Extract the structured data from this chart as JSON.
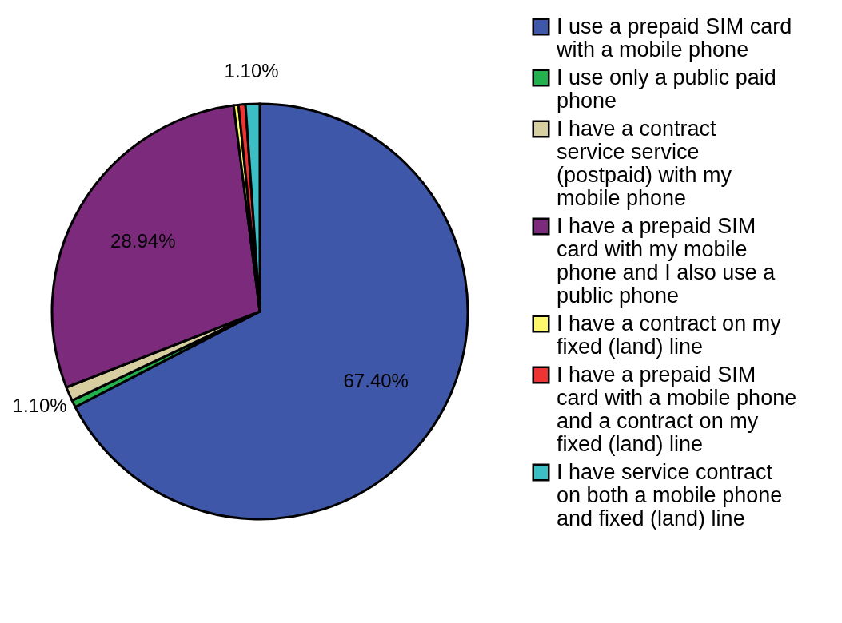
{
  "chart_data": {
    "type": "pie",
    "categories": [
      "I use a prepaid SIM card with a mobile phone",
      "I use only a public paid phone",
      "I have a contract service service (postpaid) with my mobile phone",
      "I have a prepaid SIM card with my mobile phone and I also use a public phone",
      "I have a contract on my fixed (land) line",
      "I have a prepaid SIM card with a mobile phone and a contract on my fixed (land) line",
      "I have service contract on both a mobile phone and fixed (land) line"
    ],
    "values": [
      67.4,
      0.55,
      1.1,
      28.94,
      0.37,
      0.54,
      1.1
    ],
    "value_labels": [
      "67.40%",
      null,
      "1.10%",
      "28.94%",
      null,
      null,
      "1.10%"
    ],
    "colors": [
      "#3f57a8",
      "#22b14c",
      "#d8cfa0",
      "#7b2a7c",
      "#fdf86b",
      "#ee3333",
      "#3bbfc4"
    ],
    "legend": "right"
  }
}
